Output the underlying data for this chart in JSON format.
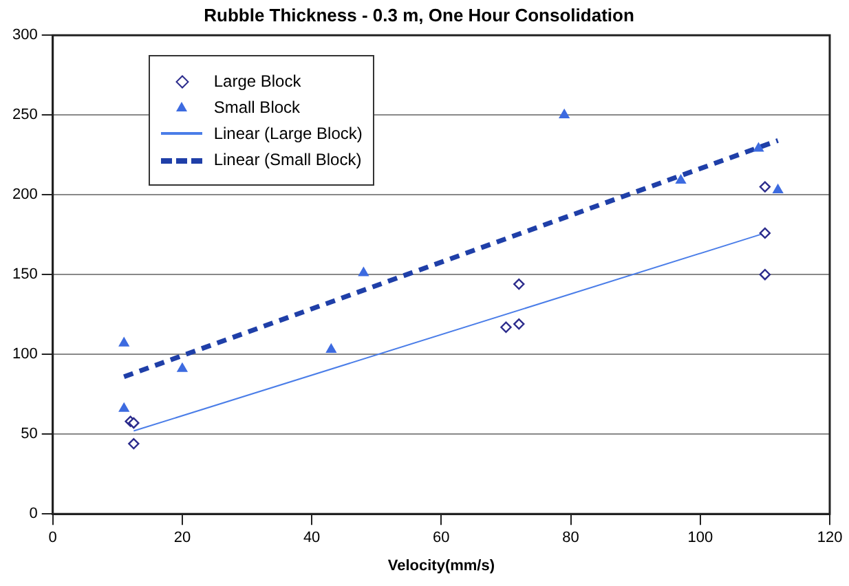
{
  "chart_data": {
    "type": "scatter",
    "title": "Rubble Thickness - 0.3 m, One Hour Consolidation",
    "xlabel": "Velocity(mm/s)",
    "xlim": [
      0,
      120
    ],
    "xticks": [
      0,
      20,
      40,
      60,
      80,
      100,
      120
    ],
    "ylim": [
      0,
      300
    ],
    "yticks": [
      0,
      50,
      100,
      150,
      200,
      250,
      300
    ],
    "grid": "y",
    "legend": "top left",
    "series": [
      {
        "name": "Large Block",
        "color": "#2b2b8c",
        "marker": "diamond",
        "x": [
          12,
          12.5,
          12.5,
          70,
          72,
          72,
          110,
          110,
          110
        ],
        "values": [
          58,
          57,
          44,
          117,
          119,
          144,
          176,
          150,
          205
        ]
      },
      {
        "name": "Small Block",
        "color": "#3d6be0",
        "marker": "triangle",
        "x": [
          11,
          11,
          20,
          43,
          48,
          79,
          97,
          109,
          112
        ],
        "values": [
          107,
          66,
          91,
          103,
          151,
          250,
          209,
          229,
          203
        ]
      },
      {
        "name": "Linear (Large Block)",
        "type": "line",
        "color": "#4a7de8",
        "marker": "none",
        "line_style": "solid",
        "x": [
          12.5,
          110
        ],
        "values": [
          52,
          176
        ]
      },
      {
        "name": "Linear (Small Block)",
        "type": "line",
        "color": "#1f3fa8",
        "marker": "none",
        "line_style": "dashed",
        "x": [
          11,
          112
        ],
        "values": [
          86,
          234
        ]
      }
    ]
  }
}
